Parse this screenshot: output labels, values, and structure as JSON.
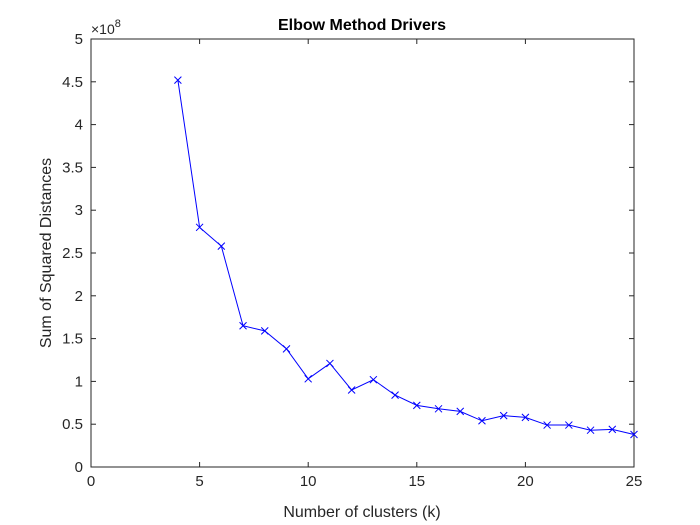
{
  "chart_data": {
    "type": "line",
    "title": "Elbow Method Drivers",
    "xlabel": "Number of clusters (k)",
    "ylabel": "Sum of Squared Distances",
    "y_exponent_label": "×10",
    "y_exponent_power": "8",
    "y_exponent_value": 100000000,
    "xlim": [
      0,
      25
    ],
    "ylim": [
      0,
      5
    ],
    "x_ticks": [
      0,
      5,
      10,
      15,
      20,
      25
    ],
    "y_ticks": [
      0,
      0.5,
      1,
      1.5,
      2,
      2.5,
      3,
      3.5,
      4,
      4.5,
      5
    ],
    "grid": false,
    "line_color": "#0000ff",
    "marker": "x",
    "x": [
      4,
      5,
      6,
      7,
      8,
      9,
      10,
      11,
      12,
      13,
      14,
      15,
      16,
      17,
      18,
      19,
      20,
      21,
      22,
      23,
      24,
      25
    ],
    "y": [
      4.52,
      2.8,
      2.58,
      1.65,
      1.59,
      1.38,
      1.03,
      1.21,
      0.9,
      1.02,
      0.84,
      0.72,
      0.68,
      0.65,
      0.54,
      0.6,
      0.58,
      0.49,
      0.49,
      0.43,
      0.44,
      0.38
    ]
  }
}
